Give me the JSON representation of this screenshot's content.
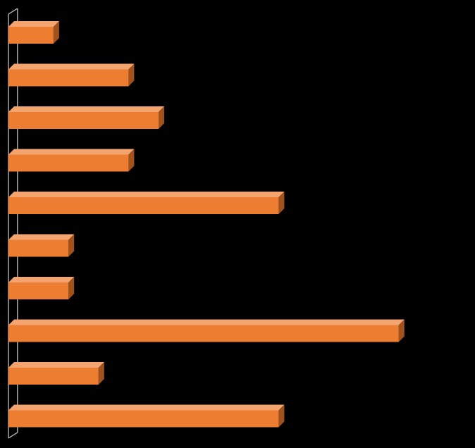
{
  "colors": {
    "background": "#000000",
    "bar_front": "#ED7D31",
    "bar_top": "#F4A46E",
    "bar_side": "#A0511C",
    "axis_line": "#A6A6A6"
  },
  "chart_data": {
    "type": "bar",
    "orientation": "horizontal",
    "style": "3d",
    "title": "",
    "xlabel": "",
    "ylabel": "",
    "grid": false,
    "legend": "none",
    "categories": [
      "",
      "",
      "",
      "",
      "",
      "",
      "",
      "",
      "",
      ""
    ],
    "values": [
      3,
      8,
      10,
      8,
      18,
      4,
      4,
      26,
      6,
      18
    ],
    "xlim": [
      0,
      30
    ]
  }
}
